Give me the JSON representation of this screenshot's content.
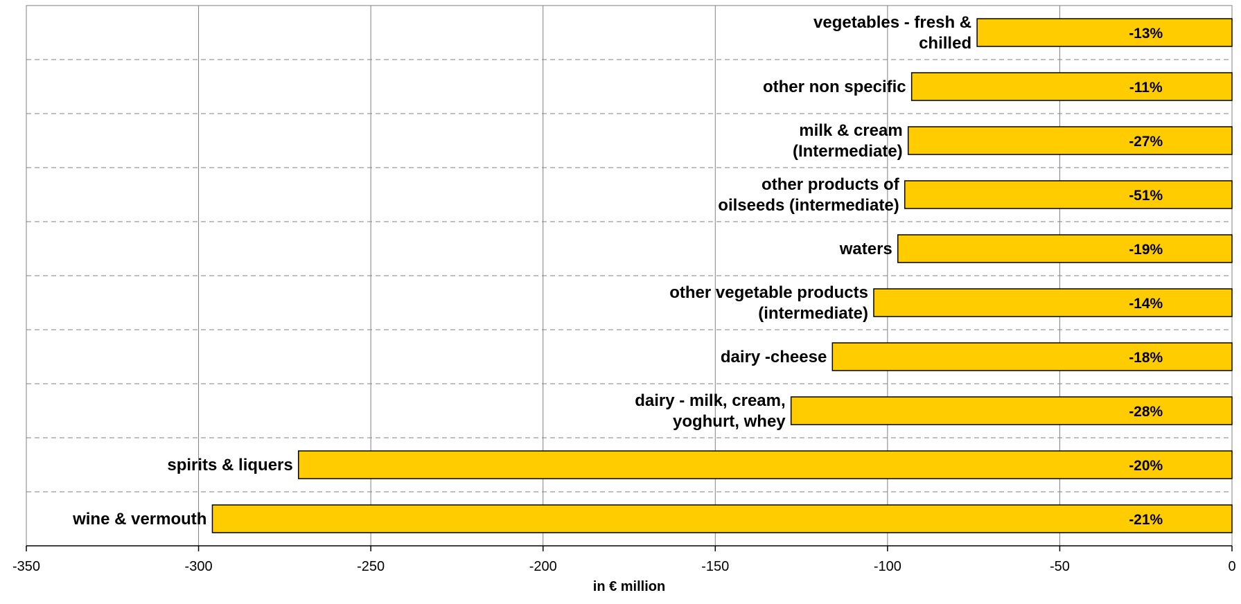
{
  "chart_data": {
    "type": "bar",
    "orientation": "horizontal",
    "categories": [
      [
        "vegetables - fresh &",
        "chilled"
      ],
      [
        "other non specific"
      ],
      [
        "milk & cream",
        "(Intermediate)"
      ],
      [
        "other products of",
        "oilseeds (intermediate)"
      ],
      [
        "waters"
      ],
      [
        "other vegetable products",
        "(intermediate)"
      ],
      [
        "dairy -cheese"
      ],
      [
        "dairy - milk, cream,",
        "yoghurt, whey"
      ],
      [
        "spirits & liquers"
      ],
      [
        "wine & vermouth"
      ]
    ],
    "values": [
      -74,
      -93,
      -94,
      -95,
      -97,
      -104,
      -116,
      -128,
      -271,
      -296
    ],
    "data_labels": [
      "-13%",
      "-11%",
      "-27%",
      "-51%",
      "-19%",
      "-14%",
      "-18%",
      "-28%",
      "-20%",
      "-21%"
    ],
    "xlabel": "in € million",
    "ylabel": "",
    "title": "",
    "xlim": [
      -350,
      0
    ],
    "xticks": [
      -350,
      -300,
      -250,
      -200,
      -150,
      -100,
      -50,
      0
    ],
    "xtick_labels": [
      "-350",
      "-300",
      "-250",
      "-200",
      "-150",
      "-100",
      "-50",
      "0"
    ],
    "grid": "vertical solid, horizontal dashed",
    "colors": {
      "bar_fill": "#FFCC00",
      "bar_stroke": "#000000",
      "grid": "#808080"
    }
  }
}
